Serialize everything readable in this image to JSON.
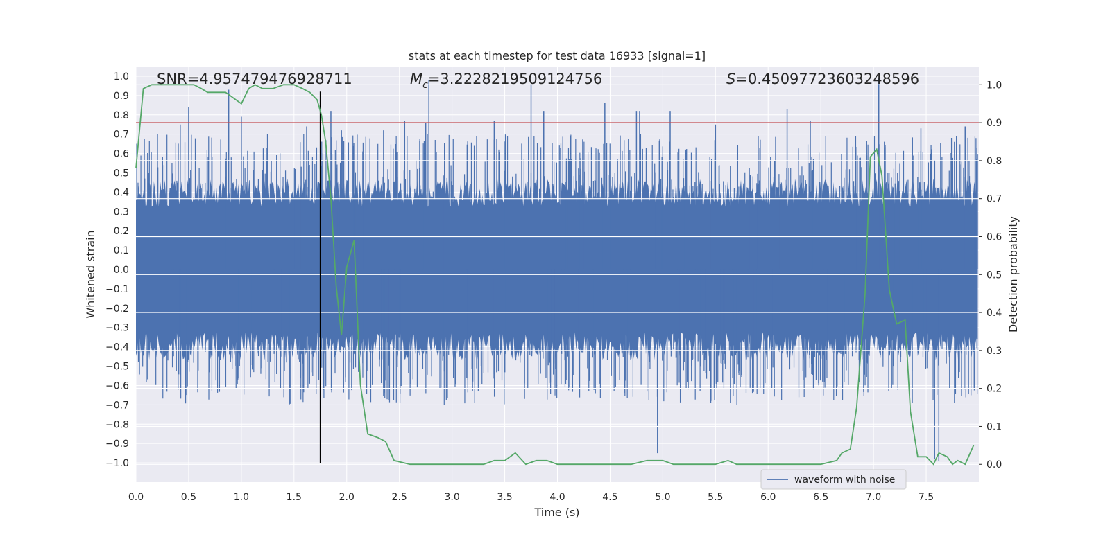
{
  "chart_data": {
    "type": "line",
    "title": "stats at each timestep for test data 16933 [signal=1]",
    "xlabel": "Time (s)",
    "ylabel": "Whitened strain",
    "y2label": "Detection probability",
    "xlim": [
      0.0,
      8.0
    ],
    "ylim": [
      -1.1,
      1.05
    ],
    "y2lim": [
      -0.047,
      1.048
    ],
    "xticks": [
      "0.0",
      "0.5",
      "1.0",
      "1.5",
      "2.0",
      "2.5",
      "3.0",
      "3.5",
      "4.0",
      "4.5",
      "5.0",
      "5.5",
      "6.0",
      "6.5",
      "7.0",
      "7.5"
    ],
    "xtick_values": [
      0.0,
      0.5,
      1.0,
      1.5,
      2.0,
      2.5,
      3.0,
      3.5,
      4.0,
      4.5,
      5.0,
      5.5,
      6.0,
      6.5,
      7.0,
      7.5
    ],
    "yticks": [
      "1.0",
      "0.9",
      "0.8",
      "0.7",
      "0.6",
      "0.5",
      "0.4",
      "0.3",
      "0.2",
      "0.1",
      "0.0",
      "−0.1",
      "−0.2",
      "−0.3",
      "−0.4",
      "−0.5",
      "−0.6",
      "−0.7",
      "−0.8",
      "−0.9",
      "−1.0"
    ],
    "ytick_values": [
      1.0,
      0.9,
      0.8,
      0.7,
      0.6,
      0.5,
      0.4,
      0.3,
      0.2,
      0.1,
      0.0,
      -0.1,
      -0.2,
      -0.3,
      -0.4,
      -0.5,
      -0.6,
      -0.7,
      -0.8,
      -0.9,
      -1.0
    ],
    "y2ticks": [
      "1.0",
      "0.9",
      "0.8",
      "0.7",
      "0.6",
      "0.5",
      "0.4",
      "0.3",
      "0.2",
      "0.1",
      "0.0"
    ],
    "y2tick_values": [
      1.0,
      0.9,
      0.8,
      0.7,
      0.6,
      0.5,
      0.4,
      0.3,
      0.2,
      0.1,
      0.0
    ],
    "annotations": {
      "snr": "SNR=4.957479476928711",
      "mc_symbol": "M",
      "mc_sub": "c",
      "mc_value": "=3.2228219509124756",
      "s_symbol": "S",
      "s_value": "=0.45097723603248596"
    },
    "legend": {
      "label": "waveform with noise",
      "location": "lower-right"
    },
    "threshold_line": {
      "y2": 0.9,
      "color": "#c44e52"
    },
    "marker_line": {
      "x": 1.75,
      "y_from": -1.0,
      "y_to": 0.92,
      "color": "#000000"
    },
    "waveform": {
      "name": "waveform with noise",
      "color": "#4c72b0",
      "t_start": 0.0,
      "t_end": 7.99,
      "envelope": 0.45,
      "spike_times": [
        0.42,
        0.5,
        0.88,
        1.0,
        1.62,
        1.85,
        1.95,
        2.35,
        2.55,
        2.75,
        2.78,
        3.4,
        3.75,
        3.87,
        4.45,
        4.75,
        4.78,
        4.95,
        5.07,
        5.5,
        6.18,
        6.4,
        6.83,
        7.05,
        7.45,
        7.58,
        7.62,
        7.87
      ],
      "spike_values": [
        0.75,
        0.84,
        0.93,
        0.79,
        0.74,
        0.82,
        0.72,
        0.72,
        0.77,
        0.76,
        0.98,
        0.77,
        0.96,
        0.82,
        0.86,
        0.82,
        0.82,
        -0.95,
        0.82,
        0.75,
        0.83,
        0.77,
        0.69,
        0.99,
        0.73,
        -0.98,
        -0.99,
        0.74
      ]
    },
    "series": [
      {
        "name": "detection probability",
        "color": "#55a868",
        "axis": "right",
        "x": [
          0.0,
          0.04,
          0.07,
          0.15,
          0.25,
          0.4,
          0.55,
          0.62,
          0.68,
          0.75,
          0.85,
          1.0,
          1.07,
          1.13,
          1.2,
          1.3,
          1.4,
          1.5,
          1.58,
          1.65,
          1.72,
          1.76,
          1.8,
          1.85,
          1.9,
          1.95,
          2.0,
          2.07,
          2.13,
          2.2,
          2.3,
          2.37,
          2.45,
          2.6,
          2.8,
          2.9,
          3.1,
          3.2,
          3.3,
          3.4,
          3.5,
          3.6,
          3.7,
          3.8,
          3.9,
          4.0,
          4.2,
          4.4,
          4.6,
          4.7,
          4.85,
          4.9,
          5.0,
          5.1,
          5.2,
          5.3,
          5.4,
          5.5,
          5.62,
          5.7,
          5.8,
          5.9,
          6.0,
          6.2,
          6.3,
          6.4,
          6.5,
          6.65,
          6.7,
          6.78,
          6.84,
          6.92,
          6.97,
          7.03,
          7.08,
          7.15,
          7.22,
          7.3,
          7.35,
          7.42,
          7.5,
          7.57,
          7.62,
          7.7,
          7.75,
          7.8,
          7.87,
          7.95
        ],
        "y": [
          0.78,
          0.9,
          0.99,
          1.0,
          1.0,
          1.0,
          1.0,
          0.99,
          0.98,
          0.98,
          0.98,
          0.95,
          0.99,
          1.0,
          0.99,
          0.99,
          1.0,
          1.0,
          0.99,
          0.98,
          0.96,
          0.92,
          0.85,
          0.7,
          0.47,
          0.34,
          0.52,
          0.59,
          0.21,
          0.08,
          0.07,
          0.06,
          0.01,
          0.0,
          0.0,
          0.0,
          0.0,
          0.0,
          0.0,
          0.01,
          0.01,
          0.03,
          0.0,
          0.01,
          0.01,
          0.0,
          0.0,
          0.0,
          0.0,
          0.0,
          0.01,
          0.01,
          0.01,
          0.0,
          0.0,
          0.0,
          0.0,
          0.0,
          0.01,
          0.0,
          0.0,
          0.0,
          0.0,
          0.0,
          0.0,
          0.0,
          0.0,
          0.01,
          0.03,
          0.04,
          0.15,
          0.45,
          0.81,
          0.83,
          0.76,
          0.46,
          0.37,
          0.38,
          0.14,
          0.02,
          0.02,
          0.0,
          0.03,
          0.02,
          0.0,
          0.01,
          0.0,
          0.05
        ]
      }
    ]
  }
}
